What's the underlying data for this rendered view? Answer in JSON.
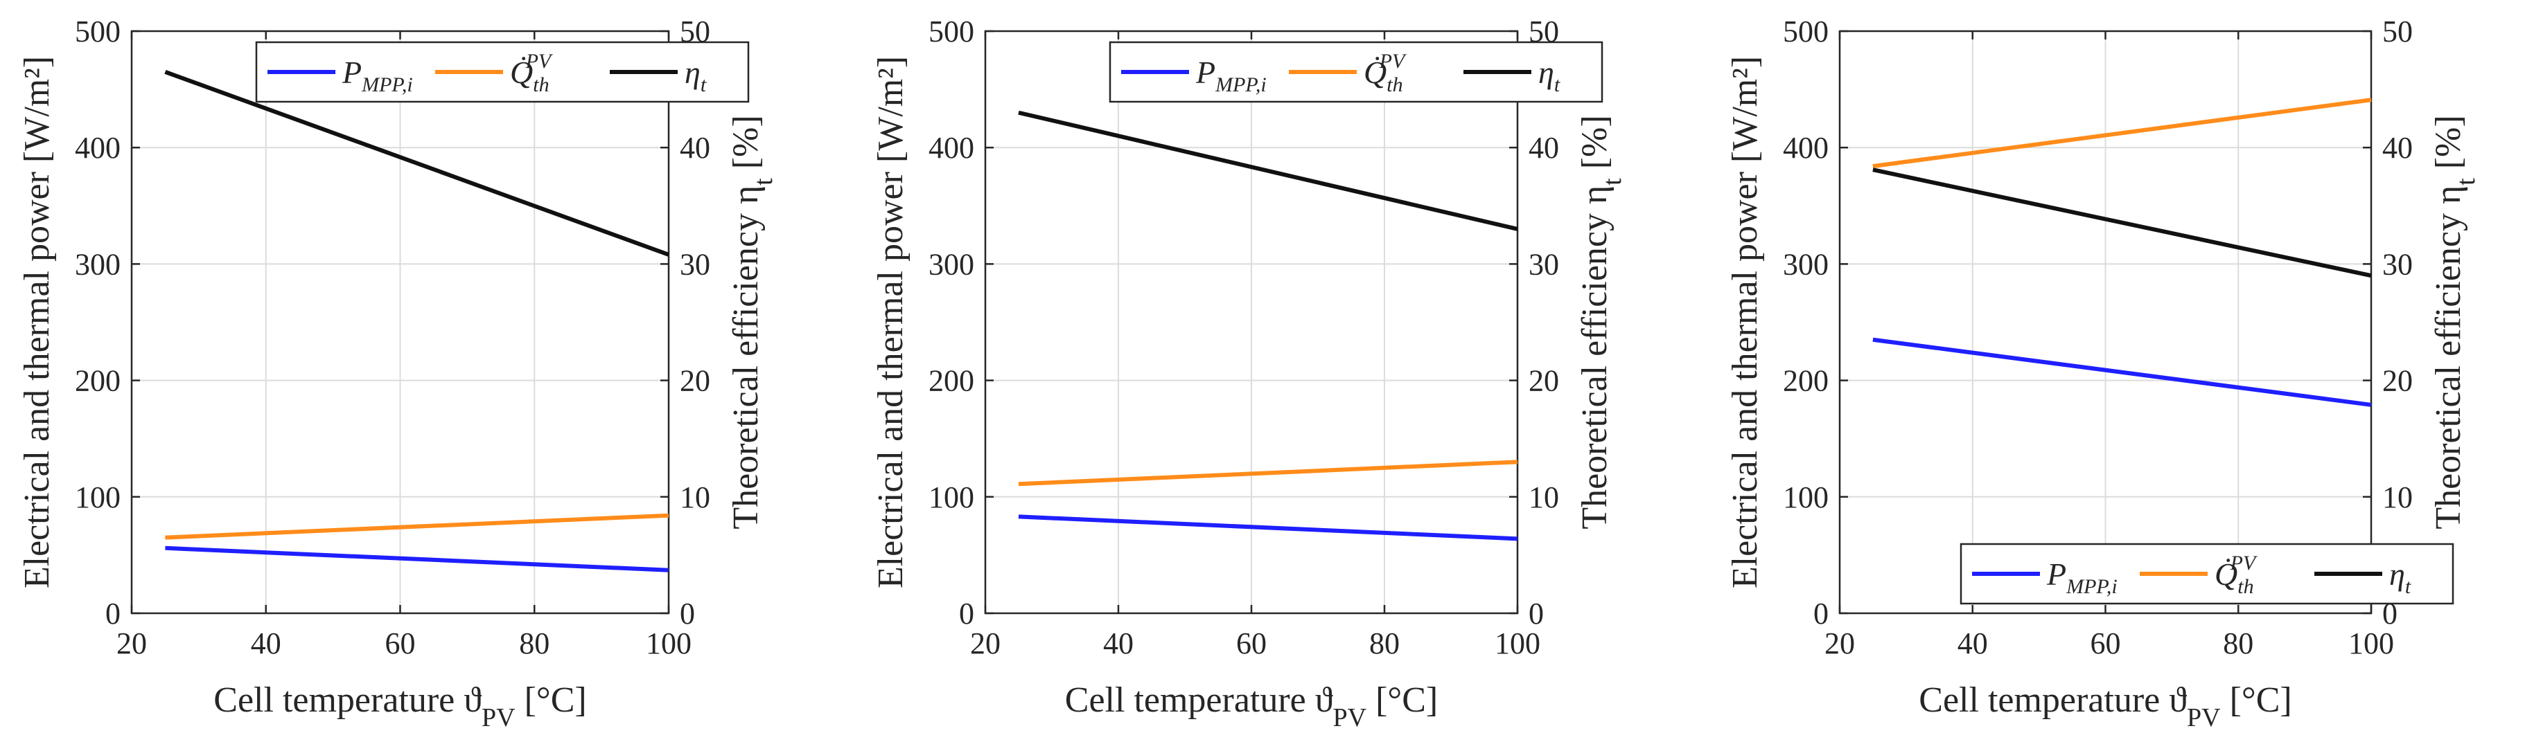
{
  "chart_data": [
    {
      "type": "line",
      "xlabel": "Cell temperature ϑ_PV [°C]",
      "ylabel": "Electrical and thermal power [W/m²]",
      "y2label": "Theoretical efficiency η_t [%]",
      "xlim": [
        20,
        100
      ],
      "ylim": [
        0,
        500
      ],
      "y2lim": [
        0,
        50
      ],
      "xticks": [
        "20",
        "40",
        "60",
        "80",
        "100"
      ],
      "yticks": [
        "0",
        "100",
        "200",
        "300",
        "400",
        "500"
      ],
      "y2ticks": [
        "0",
        "10",
        "20",
        "30",
        "40",
        "50"
      ],
      "grid": true,
      "legend_position": "top",
      "series": [
        {
          "name": "P_MPP,i",
          "axis": "left",
          "color": "#1f1fff",
          "x": [
            25,
            100
          ],
          "values": [
            56,
            37
          ]
        },
        {
          "name": "Q̇_th^PV",
          "axis": "left",
          "color": "#ff8c1a",
          "x": [
            25,
            100
          ],
          "values": [
            65,
            84
          ]
        },
        {
          "name": "η_t",
          "axis": "right",
          "color": "#111111",
          "x": [
            25,
            100
          ],
          "values": [
            46.5,
            30.8
          ]
        }
      ]
    },
    {
      "type": "line",
      "xlabel": "Cell temperature ϑ_PV [°C]",
      "ylabel": "Electrical and thermal power [W/m²]",
      "y2label": "Theoretical efficiency η_t [%]",
      "xlim": [
        20,
        100
      ],
      "ylim": [
        0,
        500
      ],
      "y2lim": [
        0,
        50
      ],
      "xticks": [
        "20",
        "40",
        "60",
        "80",
        "100"
      ],
      "yticks": [
        "0",
        "100",
        "200",
        "300",
        "400",
        "500"
      ],
      "y2ticks": [
        "0",
        "10",
        "20",
        "30",
        "40",
        "50"
      ],
      "grid": true,
      "legend_position": "top",
      "series": [
        {
          "name": "P_MPP,i",
          "axis": "left",
          "color": "#1f1fff",
          "x": [
            25,
            100
          ],
          "values": [
            83,
            64
          ]
        },
        {
          "name": "Q̇_th^PV",
          "axis": "left",
          "color": "#ff8c1a",
          "x": [
            25,
            100
          ],
          "values": [
            111,
            130
          ]
        },
        {
          "name": "η_t",
          "axis": "right",
          "color": "#111111",
          "x": [
            25,
            100
          ],
          "values": [
            43.0,
            33.0
          ]
        }
      ]
    },
    {
      "type": "line",
      "xlabel": "Cell temperature ϑ_PV [°C]",
      "ylabel": "Electrical and thermal power [W/m²]",
      "y2label": "Theoretical efficiency η_t [%]",
      "xlim": [
        20,
        100
      ],
      "ylim": [
        0,
        500
      ],
      "y2lim": [
        0,
        50
      ],
      "xticks": [
        "20",
        "40",
        "60",
        "80",
        "100"
      ],
      "yticks": [
        "0",
        "100",
        "200",
        "300",
        "400",
        "500"
      ],
      "y2ticks": [
        "0",
        "10",
        "20",
        "30",
        "40",
        "50"
      ],
      "grid": true,
      "legend_position": "bottom",
      "series": [
        {
          "name": "P_MPP,i",
          "axis": "left",
          "color": "#1f1fff",
          "x": [
            25,
            100
          ],
          "values": [
            235,
            179
          ]
        },
        {
          "name": "Q̇_th^PV",
          "axis": "left",
          "color": "#ff8c1a",
          "x": [
            25,
            100
          ],
          "values": [
            384,
            441
          ]
        },
        {
          "name": "η_t",
          "axis": "right",
          "color": "#111111",
          "x": [
            25,
            100
          ],
          "values": [
            38.1,
            29.0
          ]
        }
      ]
    }
  ]
}
